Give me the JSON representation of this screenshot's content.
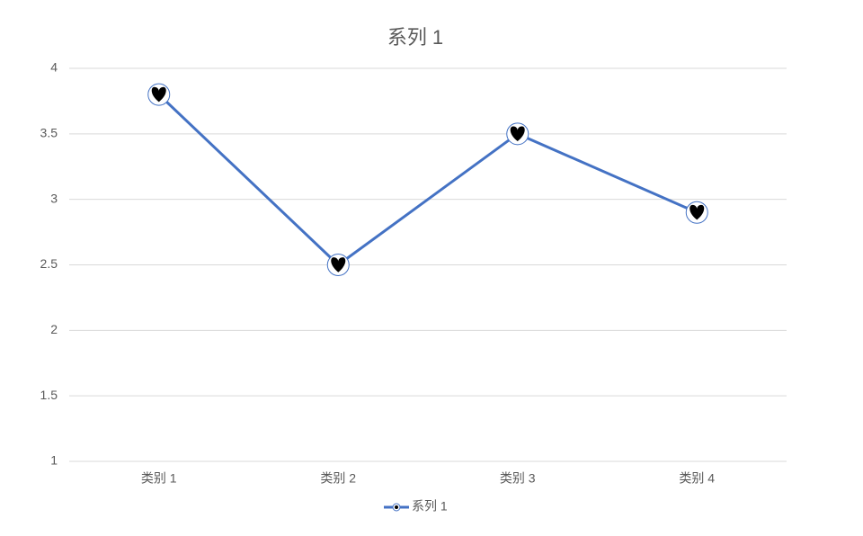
{
  "chart_data": {
    "type": "line",
    "title": "系列 1",
    "categories": [
      "类别 1",
      "类别 2",
      "类别 3",
      "类别 4"
    ],
    "series": [
      {
        "name": "系列 1",
        "color": "#4472c4",
        "values": [
          3.8,
          2.5,
          3.5,
          2.9
        ]
      }
    ],
    "ylim": [
      1,
      4
    ],
    "yticks": [
      1,
      1.5,
      2,
      2.5,
      3,
      3.5,
      4
    ],
    "grid": true,
    "legend": "bottom"
  }
}
